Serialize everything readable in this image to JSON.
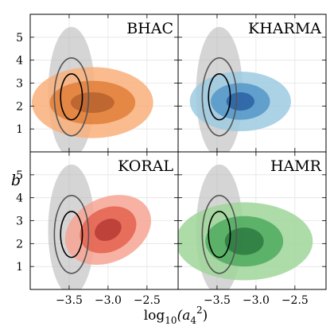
{
  "chart_data": {
    "type": "contour",
    "xlabel": "log",
    "xlabel_sub": "10",
    "xlabel_arg": "(a",
    "xlabel_arg_sub": "4",
    "xlabel_arg_sup": "2",
    "xlabel_close": ")",
    "ylabel": "b",
    "xlim": [
      -4.0,
      -2.1
    ],
    "ylim": [
      0.0,
      6.0
    ],
    "xticks": [
      -3.5,
      -3.0,
      -2.5
    ],
    "xtick_labels": [
      "−3.5",
      "−3.0",
      "−2.5"
    ],
    "yticks": [
      1,
      2,
      3,
      4,
      5
    ],
    "ytick_labels": [
      "1",
      "2",
      "3",
      "4",
      "5"
    ],
    "grid": true,
    "reference": {
      "color": "#b3b3b3",
      "center": [
        -3.47,
        2.4
      ],
      "filled_levels": [
        {
          "rx": 0.3,
          "ry": 2.85,
          "cy_shift": 0.2,
          "tilt": 0.0
        }
      ],
      "line_levels": [
        {
          "rx": 0.14,
          "ry": 1.0,
          "cy_shift": 0.0,
          "tilt": 0.0,
          "color": "#000000"
        },
        {
          "rx": 0.22,
          "ry": 1.7,
          "cy_shift": 0.0,
          "tilt": 0.0,
          "color": "#555555"
        }
      ]
    },
    "panels": [
      {
        "name": "BHAC",
        "colors": [
          "#f9b07a",
          "#e17f3a",
          "#b8612e"
        ],
        "center": [
          -3.2,
          2.15
        ],
        "levels": [
          {
            "rx": 0.78,
            "ry": 1.55,
            "tilt": 0.0
          },
          {
            "rx": 0.55,
            "ry": 0.95,
            "tilt": 0.0
          },
          {
            "rx": 0.28,
            "ry": 0.45,
            "tilt": 0.0
          }
        ]
      },
      {
        "name": "KHARMA",
        "colors": [
          "#9ecae1",
          "#5496c8",
          "#2a60a3"
        ],
        "center": [
          -3.2,
          2.2
        ],
        "levels": [
          {
            "rx": 0.65,
            "ry": 1.3,
            "tilt": 0.0
          },
          {
            "rx": 0.38,
            "ry": 0.8,
            "tilt": 0.0
          },
          {
            "rx": 0.18,
            "ry": 0.4,
            "tilt": 0.0
          }
        ]
      },
      {
        "name": "KORAL",
        "colors": [
          "#f6a594",
          "#e4614f",
          "#b73b35"
        ],
        "center": [
          -3.0,
          2.6
        ],
        "levels": [
          {
            "rx": 0.58,
            "ry": 1.4,
            "tilt": -0.45
          },
          {
            "rx": 0.38,
            "ry": 0.95,
            "tilt": -0.45
          },
          {
            "rx": 0.18,
            "ry": 0.45,
            "tilt": -0.45
          }
        ]
      },
      {
        "name": "HAMR",
        "colors": [
          "#9fd69a",
          "#4faa5f",
          "#2b7a3f"
        ],
        "center": [
          -3.15,
          2.1
        ],
        "levels": [
          {
            "rx": 0.88,
            "ry": 1.7,
            "tilt": 0.0
          },
          {
            "rx": 0.5,
            "ry": 1.1,
            "tilt": 0.0
          },
          {
            "rx": 0.25,
            "ry": 0.6,
            "tilt": 0.0
          }
        ]
      }
    ]
  }
}
